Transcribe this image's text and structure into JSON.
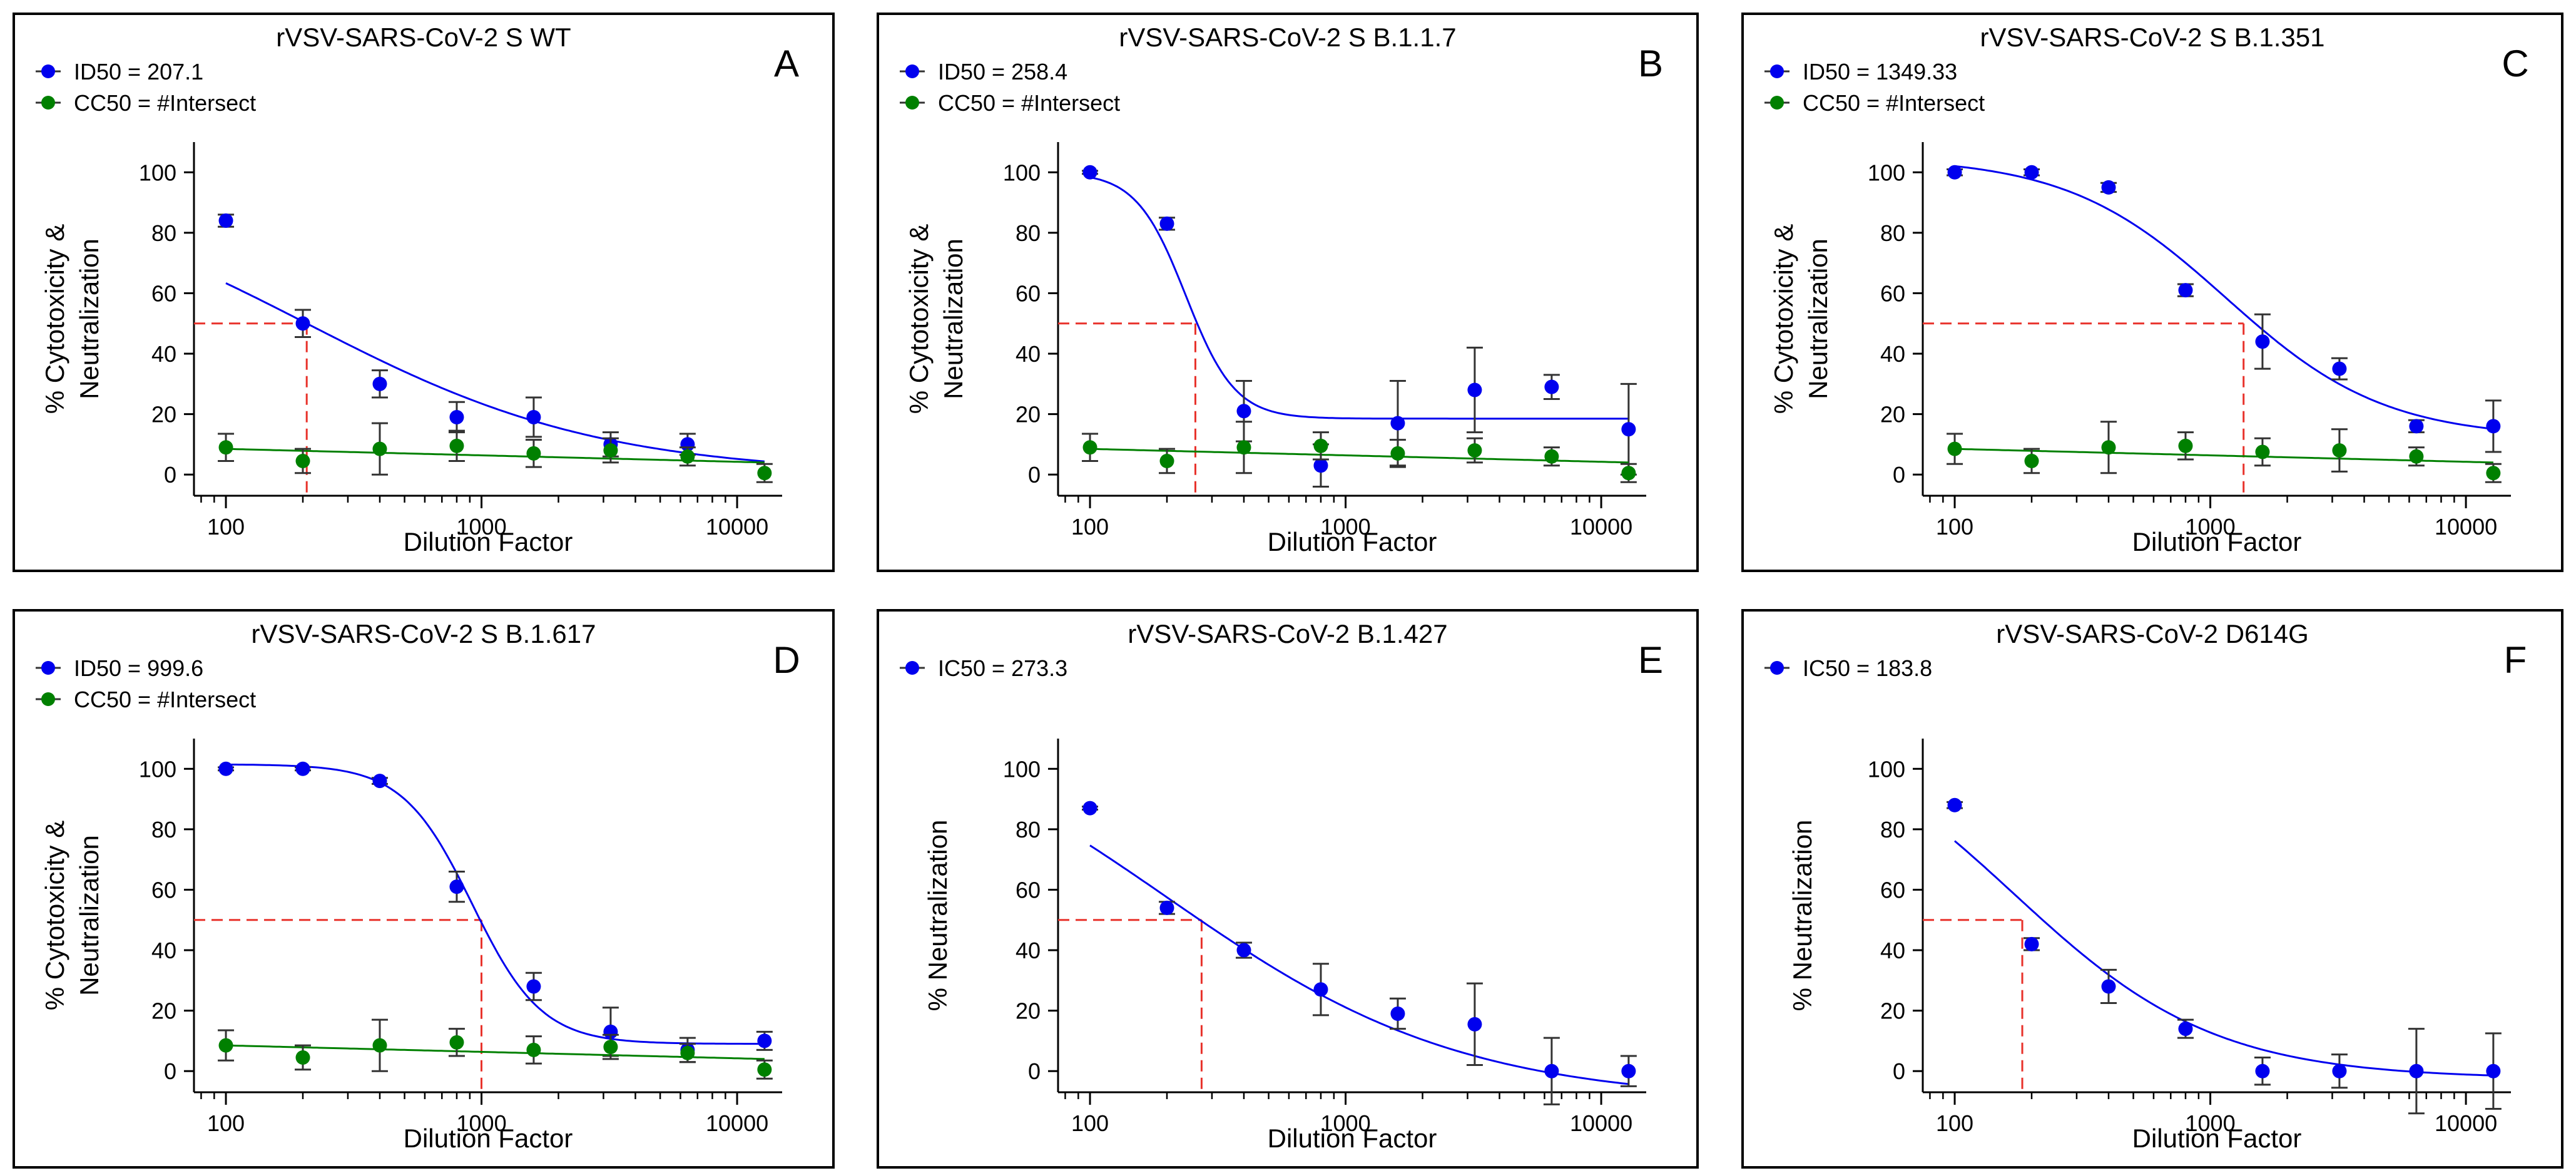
{
  "colors": {
    "neutralization": "#0000ee",
    "cytotoxicity": "#008000",
    "reference": "#e8322b",
    "axis": "#000000",
    "error_bar": "#333333"
  },
  "chart_data": [
    {
      "id": "A",
      "type": "scatter",
      "panel_letter": "A",
      "title": "rVSV-SARS-CoV-2 S  WT",
      "xlabel": "Dilution  Factor",
      "ylabel": [
        "% Cytotoxicity &",
        "Neutralization"
      ],
      "xscale": "log",
      "xlim": [
        75,
        15000
      ],
      "ylim": [
        -7,
        110
      ],
      "xticks": [
        100,
        1000,
        10000
      ],
      "xtick_labels": [
        "100",
        "1000",
        "10000"
      ],
      "yticks": [
        0,
        20,
        40,
        60,
        80,
        100
      ],
      "ytick_labels": [
        "0",
        "20",
        "40",
        "60",
        "80",
        "100"
      ],
      "legend": [
        {
          "label": "ID50 = 207.1",
          "color_key": "neutralization"
        },
        {
          "label": "CC50 = #Intersect",
          "color_key": "cytotoxicity"
        }
      ],
      "reference_line": {
        "x": 207.1,
        "y": 50
      },
      "series": [
        {
          "name": "ID50",
          "color_key": "neutralization",
          "x": [
            100,
            200,
            400,
            800,
            1600,
            3200,
            6400,
            12800
          ],
          "y": [
            84,
            50,
            30,
            19,
            19,
            10,
            10,
            null
          ],
          "err": [
            2,
            4.5,
            4.5,
            5,
            6.5,
            4,
            3.5,
            null
          ],
          "fit": {
            "bottom": 0,
            "top": 100,
            "ec50": 207.1,
            "hill": 0.75
          }
        },
        {
          "name": "CC50",
          "color_key": "cytotoxicity",
          "x": [
            100,
            200,
            400,
            800,
            1600,
            3200,
            6400,
            12800
          ],
          "y": [
            9,
            4.5,
            8.5,
            9.5,
            7,
            8,
            6,
            0.5
          ],
          "err": [
            4.5,
            4,
            8.5,
            5,
            4.5,
            4,
            3,
            3
          ],
          "fit": {
            "linear": [
              8.5,
              4
            ]
          }
        }
      ]
    },
    {
      "id": "B",
      "type": "scatter",
      "panel_letter": "B",
      "title": "rVSV-SARS-CoV-2 S  B.1.1.7",
      "xlabel": "Dilution  Factor",
      "ylabel": [
        "% Cytotoxicity &",
        "Neutralization"
      ],
      "xscale": "log",
      "xlim": [
        75,
        15000
      ],
      "ylim": [
        -7,
        110
      ],
      "xticks": [
        100,
        1000,
        10000
      ],
      "xtick_labels": [
        "100",
        "1000",
        "10000"
      ],
      "yticks": [
        0,
        20,
        40,
        60,
        80,
        100
      ],
      "ytick_labels": [
        "0",
        "20",
        "40",
        "60",
        "80",
        "100"
      ],
      "legend": [
        {
          "label": "ID50 = 258.4",
          "color_key": "neutralization"
        },
        {
          "label": "CC50 = #Intersect",
          "color_key": "cytotoxicity"
        }
      ],
      "reference_line": {
        "x": 258.4,
        "y": 50
      },
      "series": [
        {
          "name": "ID50",
          "color_key": "neutralization",
          "x": [
            100,
            200,
            400,
            800,
            1600,
            3200,
            6400,
            12800
          ],
          "y": [
            100,
            83,
            21,
            3,
            17,
            28,
            29,
            15
          ],
          "err": [
            0.5,
            2,
            10,
            7,
            14,
            14,
            4,
            15
          ],
          "fit": {
            "bottom": 18.5,
            "top": 100,
            "ec50": 237,
            "hill": 4.5
          }
        },
        {
          "name": "CC50",
          "color_key": "cytotoxicity",
          "x": [
            100,
            200,
            400,
            800,
            1600,
            3200,
            6400,
            12800
          ],
          "y": [
            9,
            4.5,
            9,
            9.5,
            7,
            8,
            6,
            0.5
          ],
          "err": [
            4.5,
            4,
            8.5,
            4.5,
            4.5,
            4,
            3,
            3
          ],
          "fit": {
            "linear": [
              8.5,
              4
            ]
          }
        }
      ]
    },
    {
      "id": "C",
      "type": "scatter",
      "panel_letter": "C",
      "title": "rVSV-SARS-CoV-2 S  B.1.351",
      "xlabel": "Dilution  Factor",
      "ylabel": [
        "% Cytotoxicity &",
        "Neutralization"
      ],
      "xscale": "log",
      "xlim": [
        75,
        15000
      ],
      "ylim": [
        -7,
        110
      ],
      "xticks": [
        100,
        1000,
        10000
      ],
      "xtick_labels": [
        "100",
        "1000",
        "10000"
      ],
      "yticks": [
        0,
        20,
        40,
        60,
        80,
        100
      ],
      "ytick_labels": [
        "0",
        "20",
        "40",
        "60",
        "80",
        "100"
      ],
      "legend": [
        {
          "label": "ID50 = 1349.33",
          "color_key": "neutralization"
        },
        {
          "label": "CC50 = #Intersect",
          "color_key": "cytotoxicity"
        }
      ],
      "reference_line": {
        "x": 1349.33,
        "y": 50
      },
      "series": [
        {
          "name": "ID50",
          "color_key": "neutralization",
          "x": [
            100,
            200,
            400,
            800,
            1600,
            3200,
            6400,
            12800
          ],
          "y": [
            100,
            100,
            95,
            61,
            44,
            35,
            16,
            16
          ],
          "err": [
            1,
            1,
            1.5,
            2,
            9,
            3.5,
            2,
            8.5
          ],
          "fit": {
            "bottom": 12,
            "top": 105,
            "ec50": 1150,
            "hill": 1.4
          }
        },
        {
          "name": "CC50",
          "color_key": "cytotoxicity",
          "x": [
            100,
            200,
            400,
            800,
            1600,
            3200,
            6400,
            12800
          ],
          "y": [
            8.5,
            4.5,
            9,
            9.5,
            7.5,
            8,
            6,
            0.5
          ],
          "err": [
            5,
            4,
            8.5,
            4.5,
            4.5,
            7,
            3,
            3
          ],
          "fit": {
            "linear": [
              8.5,
              4
            ]
          }
        }
      ]
    },
    {
      "id": "D",
      "type": "scatter",
      "panel_letter": "D",
      "title": "rVSV-SARS-CoV-2 S  B.1.617",
      "xlabel": "Dilution  Factor",
      "ylabel": [
        "% Cytotoxicity &",
        "Neutralization"
      ],
      "xscale": "log",
      "xlim": [
        75,
        15000
      ],
      "ylim": [
        -7,
        110
      ],
      "xticks": [
        100,
        1000,
        10000
      ],
      "xtick_labels": [
        "100",
        "1000",
        "10000"
      ],
      "yticks": [
        0,
        20,
        40,
        60,
        80,
        100
      ],
      "ytick_labels": [
        "0",
        "20",
        "40",
        "60",
        "80",
        "100"
      ],
      "legend": [
        {
          "label": "ID50 = 999.6",
          "color_key": "neutralization"
        },
        {
          "label": "CC50 = #Intersect",
          "color_key": "cytotoxicity"
        }
      ],
      "reference_line": {
        "x": 999.6,
        "y": 50
      },
      "series": [
        {
          "name": "ID50",
          "color_key": "neutralization",
          "x": [
            100,
            200,
            400,
            800,
            1600,
            3200,
            6400,
            12800
          ],
          "y": [
            100,
            100,
            96,
            61,
            28,
            13,
            7,
            10
          ],
          "err": [
            0.5,
            0.5,
            1,
            5,
            4.5,
            8,
            4,
            3
          ],
          "fit": {
            "bottom": 9,
            "top": 101.5,
            "ec50": 920,
            "hill": 3.2
          }
        },
        {
          "name": "CC50",
          "color_key": "cytotoxicity",
          "x": [
            100,
            200,
            400,
            800,
            1600,
            3200,
            6400,
            12800
          ],
          "y": [
            8.5,
            4.5,
            8.5,
            9.5,
            7,
            8,
            6,
            0.5
          ],
          "err": [
            5,
            4,
            8.5,
            4.5,
            4.5,
            4,
            3,
            3
          ],
          "fit": {
            "linear": [
              8.5,
              4
            ]
          }
        }
      ]
    },
    {
      "id": "E",
      "type": "scatter",
      "panel_letter": "E",
      "title": "rVSV-SARS-CoV-2 B.1.427",
      "xlabel": "Dilution  Factor",
      "ylabel": [
        "% Neutralization"
      ],
      "xscale": "log",
      "xlim": [
        75,
        15000
      ],
      "ylim": [
        -7,
        110
      ],
      "xticks": [
        100,
        1000,
        10000
      ],
      "xtick_labels": [
        "100",
        "1000",
        "10000"
      ],
      "yticks": [
        0,
        20,
        40,
        60,
        80,
        100
      ],
      "ytick_labels": [
        "0",
        "20",
        "40",
        "60",
        "80",
        "100"
      ],
      "legend": [
        {
          "label": "IC50 = 273.3",
          "color_key": "neutralization"
        }
      ],
      "reference_line": {
        "x": 273.3,
        "y": 50
      },
      "series": [
        {
          "name": "IC50",
          "color_key": "neutralization",
          "x": [
            100,
            200,
            400,
            800,
            1600,
            3200,
            6400,
            12800
          ],
          "y": [
            87,
            54,
            40,
            27,
            19,
            15.5,
            0,
            0
          ],
          "err": [
            0.5,
            2,
            2.5,
            8.5,
            5,
            13.5,
            11,
            5
          ],
          "fit": {
            "bottom": -10,
            "top": 125,
            "ec50": 200,
            "hill": 0.75
          }
        }
      ]
    },
    {
      "id": "F",
      "type": "scatter",
      "panel_letter": "F",
      "title": "rVSV-SARS-CoV-2 D614G",
      "xlabel": "Dilution  Factor",
      "ylabel": [
        "% Neutralization"
      ],
      "xscale": "log",
      "xlim": [
        75,
        15000
      ],
      "ylim": [
        -7,
        110
      ],
      "xticks": [
        100,
        1000,
        10000
      ],
      "xtick_labels": [
        "100",
        "1000",
        "10000"
      ],
      "yticks": [
        0,
        20,
        40,
        60,
        80,
        100
      ],
      "ytick_labels": [
        "0",
        "20",
        "40",
        "60",
        "80",
        "100"
      ],
      "legend": [
        {
          "label": "IC50 = 183.8",
          "color_key": "neutralization"
        }
      ],
      "reference_line": {
        "x": 183.8,
        "y": 50
      },
      "series": [
        {
          "name": "IC50",
          "color_key": "neutralization",
          "x": [
            100,
            200,
            400,
            800,
            1600,
            3200,
            6400,
            12800
          ],
          "y": [
            88,
            42,
            28,
            14,
            0,
            0,
            0,
            0
          ],
          "err": [
            1,
            2,
            5.5,
            3,
            4.5,
            5.5,
            14,
            12.5
          ],
          "fit": {
            "bottom": -2.5,
            "top": 120,
            "ec50": 170,
            "hill": 1.1
          }
        }
      ]
    }
  ]
}
